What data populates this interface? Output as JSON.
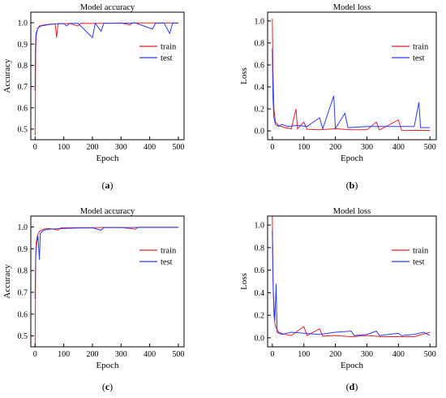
{
  "colors": {
    "train": "#e8202a",
    "test": "#2a3cf0",
    "axis": "#000000"
  },
  "chart_data": [
    {
      "type": "line",
      "panel_label": "(a)",
      "title": "Model accuracy",
      "xlabel": "Epoch",
      "ylabel": "Accuracy",
      "xlim": [
        -15,
        520
      ],
      "ylim": [
        0.45,
        1.05
      ],
      "xticks": [
        "0",
        "100",
        "200",
        "300",
        "400",
        "500"
      ],
      "yticks": [
        "0.5",
        "0.6",
        "0.7",
        "0.8",
        "0.9",
        "1.0"
      ],
      "legend": "top-right",
      "series": [
        {
          "name": "train",
          "color": "#e8202a",
          "points": [
            [
              0,
              0.47
            ],
            [
              1,
              0.68
            ],
            [
              2,
              0.86
            ],
            [
              4,
              0.94
            ],
            [
              8,
              0.97
            ],
            [
              15,
              0.985
            ],
            [
              30,
              0.99
            ],
            [
              50,
              0.993
            ],
            [
              70,
              0.995
            ],
            [
              75,
              0.93
            ],
            [
              80,
              0.995
            ],
            [
              120,
              0.997
            ],
            [
              150,
              0.985
            ],
            [
              160,
              0.998
            ],
            [
              200,
              0.997
            ],
            [
              250,
              0.998
            ],
            [
              300,
              0.999
            ],
            [
              330,
              0.99
            ],
            [
              340,
              0.999
            ],
            [
              400,
              0.999
            ],
            [
              450,
              0.999
            ],
            [
              500,
              0.999
            ]
          ]
        },
        {
          "name": "test",
          "color": "#2a3cf0",
          "points": [
            [
              0,
              0.68
            ],
            [
              1,
              0.88
            ],
            [
              3,
              0.95
            ],
            [
              6,
              0.96
            ],
            [
              10,
              0.975
            ],
            [
              20,
              0.985
            ],
            [
              40,
              0.99
            ],
            [
              60,
              0.994
            ],
            [
              80,
              0.996
            ],
            [
              100,
              0.997
            ],
            [
              110,
              0.985
            ],
            [
              120,
              0.997
            ],
            [
              150,
              0.998
            ],
            [
              200,
              0.93
            ],
            [
              210,
              0.998
            ],
            [
              230,
              0.96
            ],
            [
              240,
              0.998
            ],
            [
              300,
              0.998
            ],
            [
              350,
              0.999
            ],
            [
              410,
              0.97
            ],
            [
              420,
              0.998
            ],
            [
              450,
              0.999
            ],
            [
              470,
              0.95
            ],
            [
              480,
              0.999
            ],
            [
              500,
              0.998
            ]
          ]
        }
      ]
    },
    {
      "type": "line",
      "panel_label": "(b)",
      "title": "Model loss",
      "xlabel": "Epoch",
      "ylabel": "Loss",
      "xlim": [
        -15,
        520
      ],
      "ylim": [
        -0.08,
        1.08
      ],
      "xticks": [
        "0",
        "100",
        "200",
        "300",
        "400",
        "500"
      ],
      "yticks": [
        "0.0",
        "0.2",
        "0.4",
        "0.6",
        "0.8",
        "1.0"
      ],
      "legend": "top-right",
      "series": [
        {
          "name": "train",
          "color": "#e8202a",
          "points": [
            [
              0,
              1.02
            ],
            [
              2,
              0.55
            ],
            [
              5,
              0.2
            ],
            [
              10,
              0.08
            ],
            [
              20,
              0.05
            ],
            [
              40,
              0.03
            ],
            [
              60,
              0.02
            ],
            [
              75,
              0.2
            ],
            [
              80,
              0.02
            ],
            [
              100,
              0.08
            ],
            [
              110,
              0.015
            ],
            [
              150,
              0.01
            ],
            [
              200,
              0.02
            ],
            [
              250,
              0.01
            ],
            [
              300,
              0.01
            ],
            [
              330,
              0.08
            ],
            [
              340,
              0.008
            ],
            [
              400,
              0.1
            ],
            [
              410,
              0.006
            ],
            [
              450,
              0.005
            ],
            [
              500,
              0.005
            ]
          ]
        },
        {
          "name": "test",
          "color": "#2a3cf0",
          "points": [
            [
              0,
              0.75
            ],
            [
              2,
              0.3
            ],
            [
              5,
              0.12
            ],
            [
              10,
              0.06
            ],
            [
              20,
              0.04
            ],
            [
              30,
              0.06
            ],
            [
              50,
              0.04
            ],
            [
              80,
              0.05
            ],
            [
              110,
              0.04
            ],
            [
              150,
              0.12
            ],
            [
              160,
              0.02
            ],
            [
              195,
              0.32
            ],
            [
              200,
              0.02
            ],
            [
              230,
              0.16
            ],
            [
              240,
              0.03
            ],
            [
              300,
              0.04
            ],
            [
              350,
              0.04
            ],
            [
              400,
              0.04
            ],
            [
              450,
              0.04
            ],
            [
              465,
              0.26
            ],
            [
              470,
              0.03
            ],
            [
              500,
              0.03
            ]
          ]
        }
      ]
    },
    {
      "type": "line",
      "panel_label": "(c)",
      "title": "Model accuracy",
      "xlabel": "Epoch",
      "ylabel": "Accuracy",
      "xlim": [
        -15,
        520
      ],
      "ylim": [
        0.45,
        1.05
      ],
      "xticks": [
        "0",
        "100",
        "200",
        "300",
        "400",
        "500"
      ],
      "yticks": [
        "0.5",
        "0.6",
        "0.7",
        "0.8",
        "0.9",
        "1.0"
      ],
      "legend": "top-right",
      "series": [
        {
          "name": "train",
          "color": "#e8202a",
          "points": [
            [
              0,
              0.45
            ],
            [
              1,
              0.67
            ],
            [
              2,
              0.85
            ],
            [
              4,
              0.93
            ],
            [
              8,
              0.96
            ],
            [
              15,
              0.98
            ],
            [
              30,
              0.99
            ],
            [
              50,
              0.993
            ],
            [
              80,
              0.985
            ],
            [
              90,
              0.996
            ],
            [
              150,
              0.997
            ],
            [
              200,
              0.997
            ],
            [
              250,
              0.998
            ],
            [
              300,
              0.998
            ],
            [
              350,
              0.99
            ],
            [
              360,
              0.999
            ],
            [
              400,
              0.999
            ],
            [
              450,
              0.999
            ],
            [
              500,
              0.999
            ]
          ]
        },
        {
          "name": "test",
          "color": "#2a3cf0",
          "points": [
            [
              0,
              0.67
            ],
            [
              2,
              0.87
            ],
            [
              5,
              0.92
            ],
            [
              10,
              0.96
            ],
            [
              15,
              0.85
            ],
            [
              18,
              0.97
            ],
            [
              30,
              0.985
            ],
            [
              50,
              0.99
            ],
            [
              100,
              0.993
            ],
            [
              150,
              0.995
            ],
            [
              200,
              0.996
            ],
            [
              230,
              0.985
            ],
            [
              240,
              0.997
            ],
            [
              300,
              0.997
            ],
            [
              350,
              0.998
            ],
            [
              400,
              0.998
            ],
            [
              450,
              0.998
            ],
            [
              500,
              0.998
            ]
          ]
        }
      ]
    },
    {
      "type": "line",
      "panel_label": "(d)",
      "title": "Model loss",
      "xlabel": "Epoch",
      "ylabel": "Loss",
      "xlim": [
        -15,
        520
      ],
      "ylim": [
        -0.08,
        1.08
      ],
      "xticks": [
        "0",
        "100",
        "200",
        "300",
        "400",
        "500"
      ],
      "yticks": [
        "0.0",
        "0.2",
        "0.4",
        "0.6",
        "0.8",
        "1.0"
      ],
      "legend": "top-right",
      "series": [
        {
          "name": "train",
          "color": "#e8202a",
          "points": [
            [
              0,
              1.1
            ],
            [
              2,
              0.55
            ],
            [
              5,
              0.2
            ],
            [
              10,
              0.1
            ],
            [
              20,
              0.05
            ],
            [
              40,
              0.03
            ],
            [
              60,
              0.02
            ],
            [
              100,
              0.1
            ],
            [
              110,
              0.02
            ],
            [
              150,
              0.08
            ],
            [
              160,
              0.015
            ],
            [
              200,
              0.02
            ],
            [
              250,
              0.01
            ],
            [
              300,
              0.02
            ],
            [
              350,
              0.01
            ],
            [
              400,
              0.01
            ],
            [
              450,
              0.01
            ],
            [
              500,
              0.05
            ]
          ]
        },
        {
          "name": "test",
          "color": "#2a3cf0",
          "points": [
            [
              0,
              0.95
            ],
            [
              3,
              0.4
            ],
            [
              8,
              0.15
            ],
            [
              12,
              0.48
            ],
            [
              15,
              0.05
            ],
            [
              30,
              0.03
            ],
            [
              60,
              0.05
            ],
            [
              100,
              0.04
            ],
            [
              150,
              0.03
            ],
            [
              200,
              0.05
            ],
            [
              250,
              0.06
            ],
            [
              260,
              0.02
            ],
            [
              300,
              0.03
            ],
            [
              330,
              0.06
            ],
            [
              340,
              0.02
            ],
            [
              400,
              0.04
            ],
            [
              410,
              0.02
            ],
            [
              450,
              0.03
            ],
            [
              480,
              0.05
            ],
            [
              500,
              0.02
            ]
          ]
        }
      ]
    }
  ]
}
